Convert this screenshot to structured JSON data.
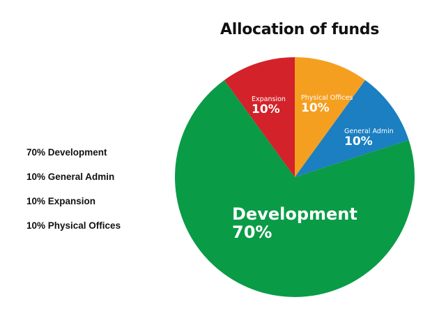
{
  "chart_data": {
    "type": "pie",
    "title": "Allocation of funds",
    "slices": [
      {
        "label": "Physical Offices",
        "value": 10,
        "value_label": "10%",
        "color": "#f59f21"
      },
      {
        "label": "General Admin",
        "value": 10,
        "value_label": "10%",
        "color": "#1b7fc1"
      },
      {
        "label": "Development",
        "value": 70,
        "value_label": "70%",
        "color": "#0a9b47"
      },
      {
        "label": "Expansion",
        "value": 10,
        "value_label": "10%",
        "color": "#d3222a"
      }
    ],
    "legend": {
      "placement": "left",
      "items": [
        "70% Development",
        "10% General Admin",
        "10% Expansion",
        "10% Physical Offices"
      ]
    }
  }
}
